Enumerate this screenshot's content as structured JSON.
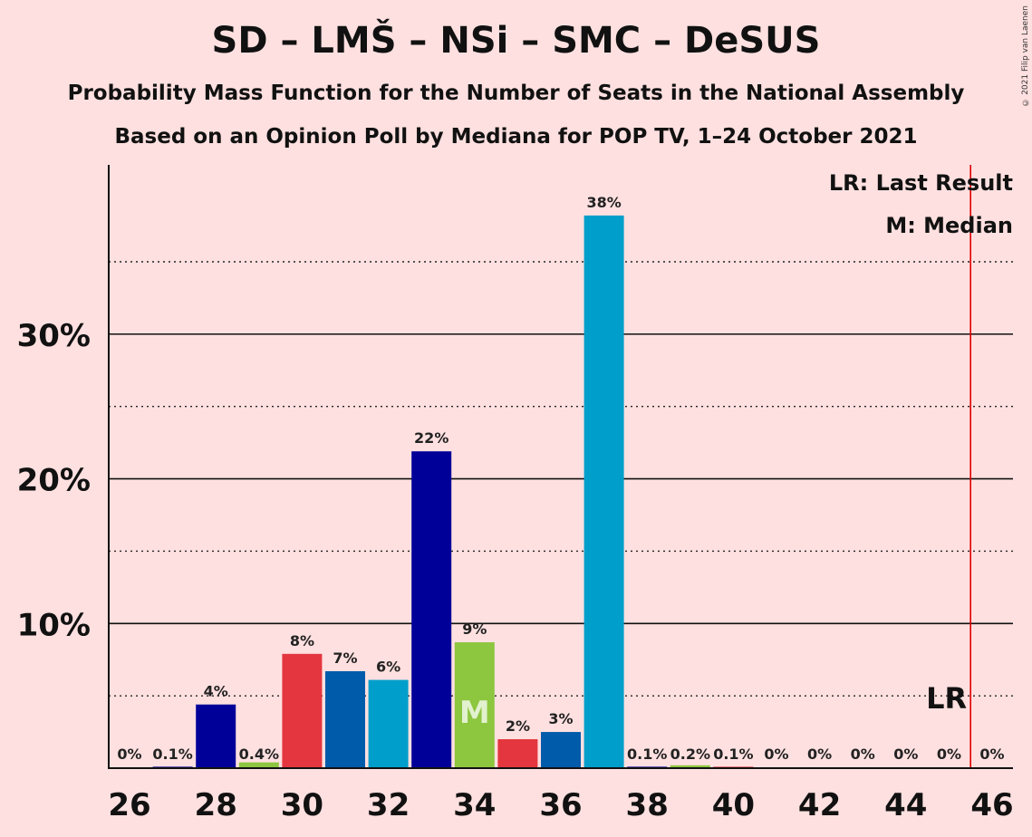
{
  "title": "SD – LMŠ – NSi – SMC – DeSUS",
  "subtitle": "Probability Mass Function for the Number of Seats in the National Assembly",
  "subtitle2": "Based on an Opinion Poll by Mediana for POP TV, 1–24 October 2021",
  "copyright": "© 2021 Filip van Laenen",
  "legend": {
    "lr": "LR: Last Result",
    "m": "M: Median"
  },
  "chart_data": {
    "type": "bar",
    "x": [
      26,
      27,
      28,
      29,
      30,
      31,
      32,
      33,
      34,
      35,
      36,
      37,
      38,
      39,
      40,
      41,
      42,
      43,
      44,
      45,
      46
    ],
    "values": [
      0,
      0.1,
      4.4,
      0.4,
      7.9,
      6.7,
      6.1,
      21.9,
      8.7,
      2.0,
      2.5,
      38.2,
      0.1,
      0.2,
      0.1,
      0,
      0,
      0,
      0,
      0,
      0
    ],
    "labels": [
      "0%",
      "0.1%",
      "4%",
      "0.4%",
      "8%",
      "7%",
      "6%",
      "22%",
      "9%",
      "2%",
      "3%",
      "38%",
      "0.1%",
      "0.2%",
      "0.1%",
      "0%",
      "0%",
      "0%",
      "0%",
      "0%",
      "0%"
    ],
    "colors": [
      "#000099",
      "#000099",
      "#000099",
      "#8DC63F",
      "#E3363E",
      "#005BAA",
      "#009FCB",
      "#000099",
      "#8DC63F",
      "#E3363E",
      "#005BAA",
      "#009FCB",
      "#000099",
      "#8DC63F",
      "#E3363E",
      "#005BAA",
      "#009FCB",
      "#000099",
      "#8DC63F",
      "#E3363E",
      "#005BAA"
    ],
    "xticks": [
      26,
      28,
      30,
      32,
      34,
      36,
      38,
      40,
      42,
      44,
      46
    ],
    "xtick_labels": [
      "26",
      "28",
      "30",
      "32",
      "34",
      "36",
      "38",
      "40",
      "42",
      "44",
      "46"
    ],
    "yticks": [
      10,
      20,
      30
    ],
    "ytick_labels": [
      "10%",
      "20%",
      "30%"
    ],
    "minor_gridlines": [
      5,
      15,
      25,
      35
    ],
    "ylim": [
      0,
      41.7
    ],
    "median": 34,
    "median_label": "M",
    "last_result": 45.5,
    "last_result_label": "LR"
  }
}
